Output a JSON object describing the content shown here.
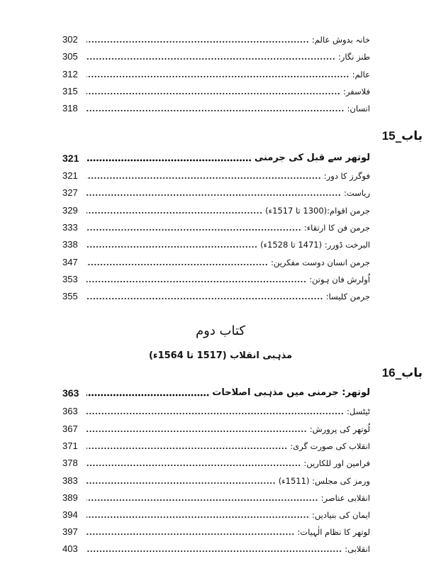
{
  "section_a": {
    "entries": [
      {
        "title": "خانہ بدوش عالم:",
        "page": "302"
      },
      {
        "title": "طنز نگار:",
        "page": "305"
      },
      {
        "title": "عالم:",
        "page": "312"
      },
      {
        "title": "فلاسفر:",
        "page": "315"
      },
      {
        "title": "انسان:",
        "page": "318"
      }
    ]
  },
  "chapter_15": {
    "label": "باب_",
    "number": "15",
    "heading": {
      "title": "لوتھر سے قبل کی جرمنی",
      "page": "321"
    },
    "entries": [
      {
        "title": "فوگرز کا دور:",
        "page": "321"
      },
      {
        "title": "ریاست:",
        "page": "327"
      },
      {
        "title": "جرمن اقوام:(1300 تا 1517ء)",
        "page": "329"
      },
      {
        "title": "جرمن فن کا ارتقاء:",
        "page": "333"
      },
      {
        "title": "البرخت ڈورر: (1471 تا 1528ء)",
        "page": "338"
      },
      {
        "title": "جرمن انسان دوست مفکرین:",
        "page": "347"
      },
      {
        "title": "اُولرش فان ہوتن:",
        "page": "353"
      },
      {
        "title": "جرمن کلیسا:",
        "page": "355"
      }
    ]
  },
  "book_two": {
    "title": "کتاب دوم",
    "subtitle": "مذہبی انقلاب (1517 تا 1564ء)"
  },
  "chapter_16": {
    "label": "باب_",
    "number": "16",
    "heading": {
      "title": "لوتھر: جرمنی میں مذہبی اصلاحات",
      "page": "363"
    },
    "entries": [
      {
        "title": "ٹیٹسل:",
        "page": "363"
      },
      {
        "title": "لُوتھر کی پرورش:",
        "page": "367"
      },
      {
        "title": "انقلاب کی صورت گری:",
        "page": "371"
      },
      {
        "title": "فرامین اور للکاریں:",
        "page": "378"
      },
      {
        "title": "ورمز کی مجلس: (1511ء)",
        "page": "383"
      },
      {
        "title": "انقلابی عناصر:",
        "page": "389"
      },
      {
        "title": "ایمان کی بنیادیں:",
        "page": "394"
      },
      {
        "title": "لوتھر کا نظام الٰہیات:",
        "page": "397"
      },
      {
        "title": "انقلابی:",
        "page": "403"
      }
    ]
  }
}
